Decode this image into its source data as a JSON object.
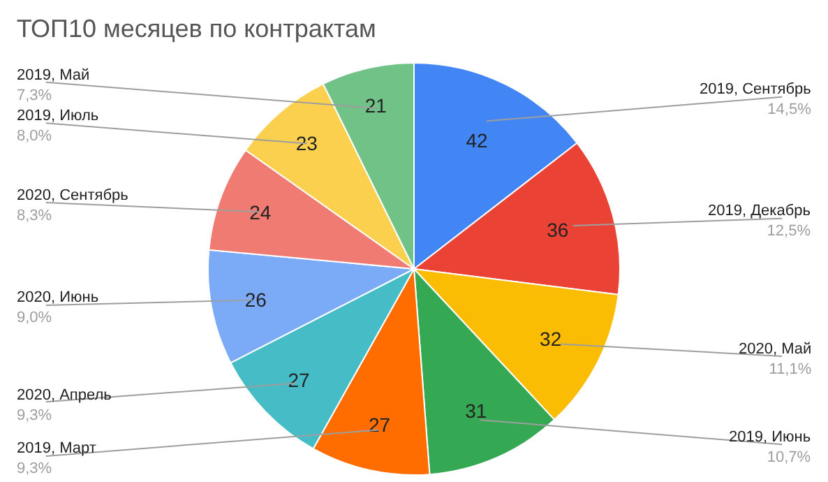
{
  "chart_data": {
    "type": "pie",
    "title": "ТОП10 месяцев по контрактам",
    "categories": [
      "2019, Сентябрь",
      "2019, Декабрь",
      "2020, Май",
      "2019, Июнь",
      "2019, Март",
      "2020, Апрель",
      "2020, Июнь",
      "2020, Сентябрь",
      "2019, Июль",
      "2019, Май"
    ],
    "values": [
      42,
      36,
      32,
      31,
      27,
      27,
      26,
      24,
      23,
      21
    ],
    "annotations": [
      "14,5%",
      "12,5%",
      "11,1%",
      "10,7%",
      "9,3%",
      "9,3%",
      "9,0%",
      "8,3%",
      "8,0%",
      "7,3%"
    ],
    "colors": [
      "#4285f4",
      "#ea4335",
      "#fbbc04",
      "#34a853",
      "#ff6d01",
      "#46bdc6",
      "#7baaf7",
      "#f07b72",
      "#fcd04f",
      "#71c287"
    ],
    "data_labels": true
  }
}
